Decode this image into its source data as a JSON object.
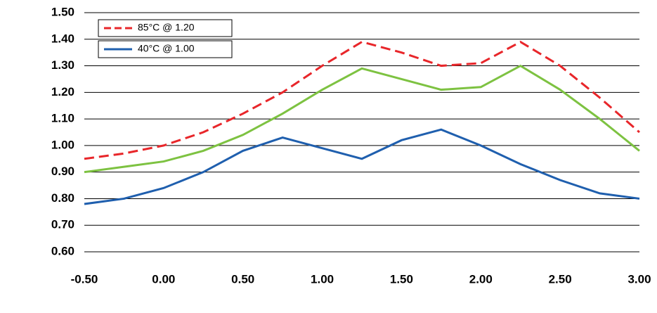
{
  "chart_data": {
    "type": "line",
    "x": [
      -0.5,
      -0.25,
      0,
      0.25,
      0.5,
      0.75,
      1,
      1.25,
      1.5,
      1.75,
      2,
      2.25,
      2.5,
      2.75,
      3
    ],
    "series": [
      {
        "name": "85°C @ 1.20",
        "color": "#e8262a",
        "dash": true,
        "values": [
          0.95,
          0.97,
          1.0,
          1.05,
          1.12,
          1.2,
          1.3,
          1.39,
          1.35,
          1.3,
          1.31,
          1.39,
          1.3,
          1.18,
          1.05
        ]
      },
      {
        "color": "#7dc241",
        "dash": false,
        "values": [
          0.9,
          0.92,
          0.94,
          0.98,
          1.04,
          1.12,
          1.21,
          1.29,
          1.25,
          1.21,
          1.22,
          1.3,
          1.21,
          1.1,
          0.98
        ]
      },
      {
        "name": "40°C @ 1.00",
        "color": "#1f5fae",
        "dash": false,
        "values": [
          0.78,
          0.8,
          0.84,
          0.9,
          0.98,
          1.03,
          0.99,
          0.95,
          1.02,
          1.06,
          1.0,
          0.93,
          0.87,
          0.82,
          0.8
        ]
      }
    ],
    "xlim": [
      -0.5,
      3.0
    ],
    "xticks": [
      {
        "value": -0.5,
        "label": "-0.50"
      },
      {
        "value": 0,
        "label": "0.00"
      },
      {
        "value": 0.5,
        "label": "0.50"
      },
      {
        "value": 1,
        "label": "1.00"
      },
      {
        "value": 1.5,
        "label": "1.50"
      },
      {
        "value": 2,
        "label": "2.00"
      },
      {
        "value": 2.5,
        "label": "2.50"
      },
      {
        "value": 3,
        "label": "3.00"
      }
    ],
    "ylim": [
      0.6,
      1.5
    ],
    "yticks": [
      {
        "value": 0.6,
        "label": "0.60"
      },
      {
        "value": 0.7,
        "label": "0.70"
      },
      {
        "value": 0.8,
        "label": "0.80"
      },
      {
        "value": 0.9,
        "label": "0.90"
      },
      {
        "value": 1.0,
        "label": "1.00"
      },
      {
        "value": 1.1,
        "label": "1.10"
      },
      {
        "value": 1.2,
        "label": "1.20"
      },
      {
        "value": 1.3,
        "label": "1.30"
      },
      {
        "value": 1.4,
        "label": "1.40"
      },
      {
        "value": 1.5,
        "label": "1.50"
      }
    ],
    "grid": true
  }
}
